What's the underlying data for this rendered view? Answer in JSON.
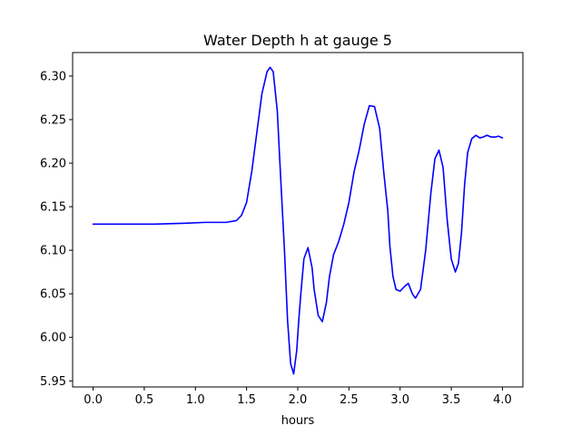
{
  "chart_data": {
    "type": "line",
    "title": "Water Depth h at gauge 5",
    "xlabel": "hours",
    "ylabel": "",
    "xlim": [
      -0.2,
      4.2
    ],
    "ylim": [
      5.943,
      6.327
    ],
    "xticks": [
      0.0,
      0.5,
      1.0,
      1.5,
      2.0,
      2.5,
      3.0,
      3.5,
      4.0
    ],
    "xtick_labels": [
      "0.0",
      "0.5",
      "1.0",
      "1.5",
      "2.0",
      "2.5",
      "3.0",
      "3.5",
      "4.0"
    ],
    "yticks": [
      5.95,
      6.0,
      6.05,
      6.1,
      6.15,
      6.2,
      6.25,
      6.3
    ],
    "ytick_labels": [
      "5.95",
      "6.00",
      "6.05",
      "6.10",
      "6.15",
      "6.20",
      "6.25",
      "6.30"
    ],
    "grid": false,
    "legend": "none",
    "colors": {
      "line": "#0000ff",
      "axes": "#000000"
    },
    "series": [
      {
        "x": [
          0.0,
          0.3,
          0.6,
          0.9,
          1.1,
          1.3,
          1.4,
          1.45,
          1.5,
          1.55,
          1.6,
          1.65,
          1.7,
          1.73,
          1.76,
          1.8,
          1.83,
          1.87,
          1.9,
          1.93,
          1.96,
          1.99,
          2.01,
          2.03,
          2.06,
          2.1,
          2.14,
          2.16,
          2.2,
          2.24,
          2.28,
          2.31,
          2.35,
          2.4,
          2.45,
          2.5,
          2.55,
          2.6,
          2.65,
          2.7,
          2.75,
          2.8,
          2.84,
          2.88,
          2.9,
          2.93,
          2.96,
          3.0,
          3.04,
          3.08,
          3.12,
          3.15,
          3.2,
          3.25,
          3.3,
          3.34,
          3.38,
          3.42,
          3.46,
          3.5,
          3.54,
          3.57,
          3.6,
          3.63,
          3.66,
          3.7,
          3.74,
          3.78,
          3.81,
          3.85,
          3.89,
          3.93,
          3.96,
          4.0
        ],
        "y": [
          6.13,
          6.13,
          6.13,
          6.131,
          6.132,
          6.132,
          6.134,
          6.14,
          6.155,
          6.19,
          6.235,
          6.28,
          6.305,
          6.31,
          6.305,
          6.26,
          6.19,
          6.1,
          6.02,
          5.97,
          5.958,
          5.985,
          6.02,
          6.05,
          6.09,
          6.103,
          6.08,
          6.055,
          6.025,
          6.018,
          6.04,
          6.07,
          6.095,
          6.11,
          6.13,
          6.155,
          6.19,
          6.215,
          6.245,
          6.266,
          6.265,
          6.24,
          6.19,
          6.145,
          6.105,
          6.07,
          6.055,
          6.053,
          6.058,
          6.062,
          6.05,
          6.045,
          6.055,
          6.1,
          6.165,
          6.205,
          6.215,
          6.195,
          6.135,
          6.09,
          6.075,
          6.085,
          6.12,
          6.175,
          6.212,
          6.228,
          6.232,
          6.229,
          6.23,
          6.232,
          6.23,
          6.23,
          6.231,
          6.229
        ]
      }
    ]
  }
}
